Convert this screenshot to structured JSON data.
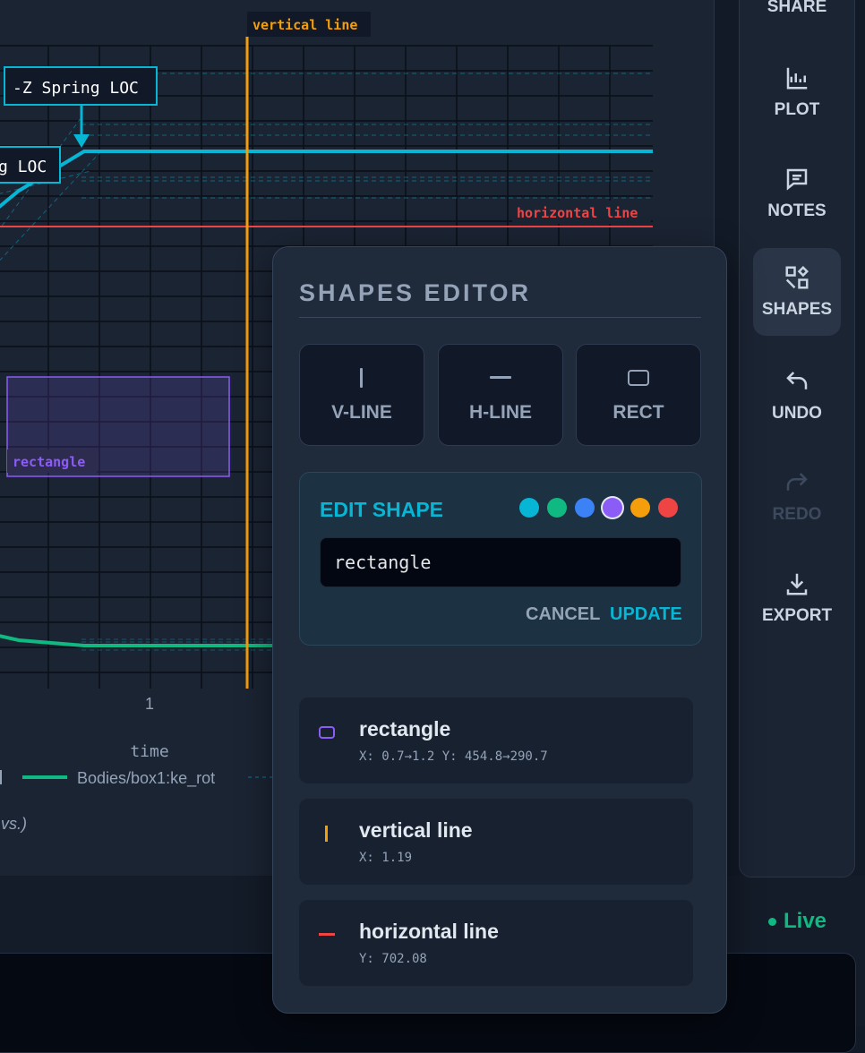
{
  "plot": {
    "x_tick_label": "1",
    "x_axis_label": "time",
    "legend_series": "Bodies/box1:ke_rot",
    "footnote": "vs.)",
    "annotation_main": "-Z Spring LOC",
    "annotation_cut": "g LOC",
    "shape_labels": {
      "vertical": "vertical line",
      "horizontal": "horizontal line",
      "rectangle": "rectangle"
    },
    "colors": {
      "cyan": "#06b6d4",
      "green": "#10b981",
      "orange": "#f59e0b",
      "red": "#ef4444",
      "purple": "#8b5cf6"
    }
  },
  "toolbar": {
    "items": [
      {
        "label": "SHARE",
        "icon": "share-icon"
      },
      {
        "label": "PLOT",
        "icon": "chart-icon"
      },
      {
        "label": "NOTES",
        "icon": "message-icon"
      },
      {
        "label": "SHAPES",
        "icon": "shapes-icon",
        "active": true
      },
      {
        "label": "UNDO",
        "icon": "undo-icon"
      },
      {
        "label": "REDO",
        "icon": "redo-icon",
        "disabled": true
      },
      {
        "label": "EXPORT",
        "icon": "download-icon"
      }
    ]
  },
  "editor": {
    "title": "SHAPES EDITOR",
    "buttons": {
      "vline": "V-LINE",
      "hline": "H-LINE",
      "rect": "RECT"
    },
    "edit_title": "EDIT SHAPE",
    "swatch_colors": [
      "#06b6d4",
      "#10b981",
      "#3b82f6",
      "#8b5cf6",
      "#f59e0b",
      "#ef4444"
    ],
    "selected_swatch": 3,
    "name_value": "rectangle",
    "cancel_label": "CANCEL",
    "update_label": "UPDATE",
    "shapes": [
      {
        "name": "rectangle",
        "meta": "X: 0.7→1.2 Y: 454.8→290.7",
        "color": "#8b5cf6"
      },
      {
        "name": "vertical line",
        "meta": "X: 1.19",
        "color": "#f59e0b"
      },
      {
        "name": "horizontal line",
        "meta": "Y: 702.08",
        "color": "#ef4444"
      }
    ]
  },
  "status": {
    "live_label": "Live"
  }
}
